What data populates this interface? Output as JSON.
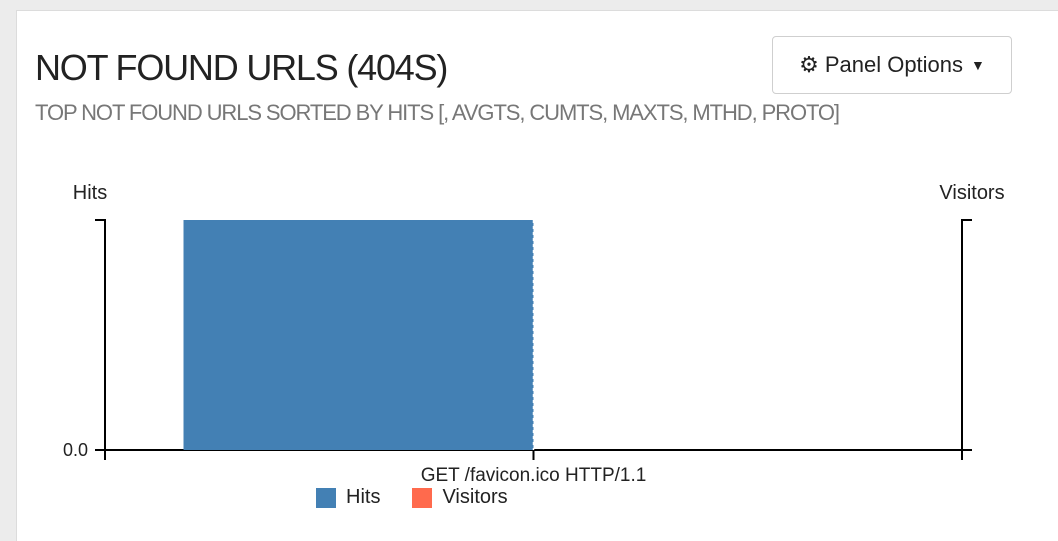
{
  "panel": {
    "title": "NOT FOUND URLS (404S)",
    "subtitle": "TOP NOT FOUND URLS SORTED BY HITS [, AVGTS, CUMTS, MAXTS, MTHD, PROTO]",
    "options_button": {
      "label": "Panel Options",
      "icon": "gear-icon",
      "caret": "caret-down-icon"
    }
  },
  "chart_data": {
    "type": "bar",
    "categories": [
      "GET /favicon.ico HTTP/1.1"
    ],
    "series": [
      {
        "name": "Hits",
        "values": [
          1
        ],
        "color": "#4380b4"
      },
      {
        "name": "Visitors",
        "values": [
          0
        ],
        "color": "#ff6a4d"
      }
    ],
    "ylabel_left": "Hits",
    "ylabel_right": "Visitors",
    "y_tick_labels": [
      "0.0"
    ],
    "ylim": [
      0,
      1
    ],
    "grid": false,
    "legend_position": "bottom"
  }
}
